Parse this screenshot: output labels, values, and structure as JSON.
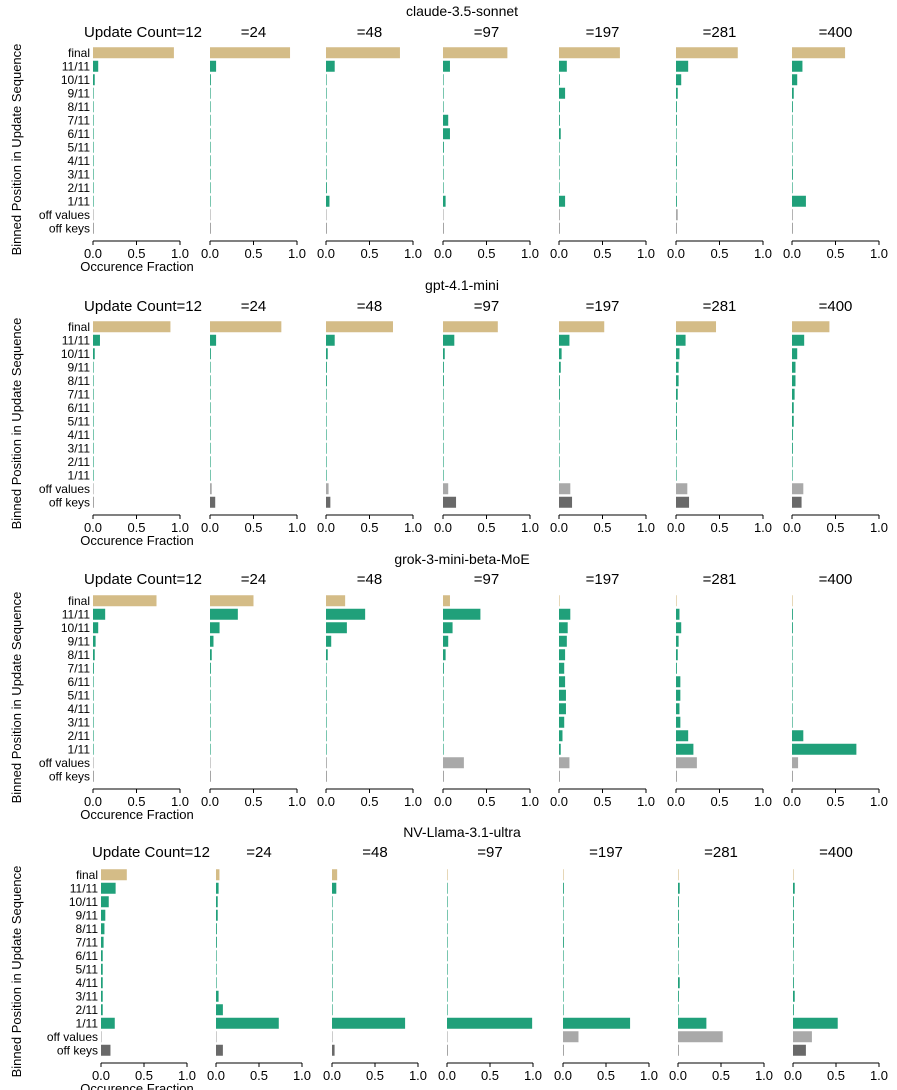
{
  "colors": {
    "final": "#d4bc87",
    "position": "#20a07a",
    "off_values": "#a9a9a9",
    "off_keys": "#696969"
  },
  "chart_data": [
    {
      "type": "bar",
      "orientation": "horizontal",
      "title": "claude-3.5-sonnet",
      "ylabel": "Binned Position in Update Sequence",
      "xlabel": "Occurence Fraction",
      "categories": [
        "final",
        "11/11",
        "10/11",
        "9/11",
        "8/11",
        "7/11",
        "6/11",
        "5/11",
        "4/11",
        "3/11",
        "2/11",
        "1/11",
        "off values",
        "off keys"
      ],
      "xlim": [
        0,
        1
      ],
      "xticks": [
        "0.0",
        "0.5",
        "1.0"
      ],
      "grid": false,
      "panels": [
        {
          "label": "Update Count=12",
          "values": [
            0.93,
            0.06,
            0.02,
            0.0,
            0.0,
            0.0,
            0.0,
            0.0,
            0.0,
            0.0,
            0.0,
            0.0,
            0.0,
            0.0
          ]
        },
        {
          "label": "=24",
          "values": [
            0.92,
            0.07,
            0.01,
            0.0,
            0.0,
            0.0,
            0.0,
            0.0,
            0.0,
            0.0,
            0.0,
            0.0,
            0.0,
            0.0
          ]
        },
        {
          "label": "=48",
          "values": [
            0.85,
            0.1,
            0.0,
            0.0,
            0.0,
            0.0,
            0.0,
            0.0,
            0.0,
            0.0,
            0.01,
            0.04,
            0.0,
            0.0
          ]
        },
        {
          "label": "=97",
          "values": [
            0.74,
            0.08,
            0.0,
            0.0,
            0.0,
            0.06,
            0.08,
            0.01,
            0.0,
            0.0,
            0.0,
            0.03,
            0.0,
            0.0
          ]
        },
        {
          "label": "=197",
          "values": [
            0.7,
            0.09,
            0.01,
            0.07,
            0.01,
            0.01,
            0.02,
            0.0,
            0.0,
            0.0,
            0.0,
            0.07,
            0.01,
            0.0
          ]
        },
        {
          "label": "=281",
          "values": [
            0.71,
            0.14,
            0.06,
            0.02,
            0.01,
            0.01,
            0.0,
            0.0,
            0.01,
            0.0,
            0.0,
            0.01,
            0.02,
            0.0
          ]
        },
        {
          "label": "=400",
          "values": [
            0.61,
            0.12,
            0.06,
            0.02,
            0.01,
            0.0,
            0.0,
            0.0,
            0.0,
            0.01,
            0.0,
            0.16,
            0.01,
            0.0
          ]
        }
      ]
    },
    {
      "type": "bar",
      "orientation": "horizontal",
      "title": "gpt-4.1-mini",
      "ylabel": "Binned Position in Update Sequence",
      "xlabel": "Occurence Fraction",
      "categories": [
        "final",
        "11/11",
        "10/11",
        "9/11",
        "8/11",
        "7/11",
        "6/11",
        "5/11",
        "4/11",
        "3/11",
        "2/11",
        "1/11",
        "off values",
        "off keys"
      ],
      "xlim": [
        0,
        1
      ],
      "xticks": [
        "0.0",
        "0.5",
        "1.0"
      ],
      "grid": false,
      "panels": [
        {
          "label": "Update Count=12",
          "values": [
            0.89,
            0.08,
            0.02,
            0.0,
            0.0,
            0.0,
            0.0,
            0.0,
            0.0,
            0.0,
            0.0,
            0.0,
            0.0,
            0.0
          ]
        },
        {
          "label": "=24",
          "values": [
            0.82,
            0.07,
            0.01,
            0.0,
            0.0,
            0.0,
            0.0,
            0.0,
            0.0,
            0.0,
            0.0,
            0.0,
            0.02,
            0.06
          ]
        },
        {
          "label": "=48",
          "values": [
            0.77,
            0.1,
            0.02,
            0.01,
            0.01,
            0.0,
            0.0,
            0.0,
            0.0,
            0.0,
            0.0,
            0.0,
            0.03,
            0.05
          ]
        },
        {
          "label": "=97",
          "values": [
            0.63,
            0.13,
            0.02,
            0.01,
            0.01,
            0.0,
            0.0,
            0.0,
            0.0,
            0.0,
            0.0,
            0.0,
            0.06,
            0.15
          ]
        },
        {
          "label": "=197",
          "values": [
            0.52,
            0.12,
            0.03,
            0.02,
            0.01,
            0.01,
            0.0,
            0.0,
            0.0,
            0.0,
            0.0,
            0.0,
            0.13,
            0.15
          ]
        },
        {
          "label": "=281",
          "values": [
            0.46,
            0.11,
            0.04,
            0.03,
            0.03,
            0.02,
            0.01,
            0.01,
            0.01,
            0.0,
            0.0,
            0.0,
            0.13,
            0.15
          ]
        },
        {
          "label": "=400",
          "values": [
            0.43,
            0.14,
            0.06,
            0.04,
            0.04,
            0.03,
            0.02,
            0.02,
            0.01,
            0.01,
            0.0,
            0.0,
            0.13,
            0.11
          ]
        }
      ]
    },
    {
      "type": "bar",
      "orientation": "horizontal",
      "title": "grok-3-mini-beta-MoE",
      "ylabel": "Binned Position in Update Sequence",
      "xlabel": "Occurence Fraction",
      "categories": [
        "final",
        "11/11",
        "10/11",
        "9/11",
        "8/11",
        "7/11",
        "6/11",
        "5/11",
        "4/11",
        "3/11",
        "2/11",
        "1/11",
        "off values",
        "off keys"
      ],
      "xlim": [
        0,
        1
      ],
      "xticks": [
        "0.0",
        "0.5",
        "1.0"
      ],
      "grid": false,
      "panels": [
        {
          "label": "Update Count=12",
          "values": [
            0.73,
            0.14,
            0.06,
            0.03,
            0.02,
            0.01,
            0.0,
            0.0,
            0.0,
            0.0,
            0.0,
            0.0,
            0.0,
            0.0
          ]
        },
        {
          "label": "=24",
          "values": [
            0.5,
            0.32,
            0.11,
            0.04,
            0.02,
            0.01,
            0.0,
            0.0,
            0.0,
            0.0,
            0.0,
            0.0,
            0.0,
            0.0
          ]
        },
        {
          "label": "=48",
          "values": [
            0.22,
            0.45,
            0.24,
            0.06,
            0.02,
            0.0,
            0.0,
            0.0,
            0.0,
            0.0,
            0.0,
            0.0,
            0.01,
            0.0
          ]
        },
        {
          "label": "=97",
          "values": [
            0.08,
            0.43,
            0.11,
            0.06,
            0.03,
            0.01,
            0.0,
            0.0,
            0.0,
            0.0,
            0.0,
            0.0,
            0.24,
            0.0
          ]
        },
        {
          "label": "=197",
          "values": [
            0.0,
            0.13,
            0.1,
            0.09,
            0.07,
            0.06,
            0.07,
            0.08,
            0.08,
            0.06,
            0.04,
            0.02,
            0.12,
            0.0
          ]
        },
        {
          "label": "=281",
          "values": [
            0.0,
            0.04,
            0.06,
            0.03,
            0.02,
            0.01,
            0.05,
            0.05,
            0.04,
            0.05,
            0.14,
            0.2,
            0.24,
            0.0
          ]
        },
        {
          "label": "=400",
          "values": [
            0.0,
            0.01,
            0.01,
            0.0,
            0.0,
            0.0,
            0.0,
            0.0,
            0.0,
            0.0,
            0.13,
            0.74,
            0.07,
            0.0
          ]
        }
      ]
    },
    {
      "type": "bar",
      "orientation": "horizontal",
      "title": "NV-Llama-3.1-ultra",
      "ylabel": "Binned Position in Update Sequence",
      "xlabel": "Occurence Fraction",
      "categories": [
        "final",
        "11/11",
        "10/11",
        "9/11",
        "8/11",
        "7/11",
        "6/11",
        "5/11",
        "4/11",
        "3/11",
        "2/11",
        "1/11",
        "off values",
        "off keys"
      ],
      "xlim": [
        0,
        1
      ],
      "xticks": [
        "0.0",
        "0.5",
        "1.0"
      ],
      "grid": false,
      "panels": [
        {
          "label": "Update Count=12",
          "values": [
            0.3,
            0.17,
            0.09,
            0.05,
            0.04,
            0.03,
            0.02,
            0.02,
            0.02,
            0.02,
            0.02,
            0.16,
            0.0,
            0.11
          ]
        },
        {
          "label": "=24",
          "values": [
            0.04,
            0.03,
            0.02,
            0.02,
            0.01,
            0.01,
            0.0,
            0.0,
            0.0,
            0.03,
            0.08,
            0.73,
            0.0,
            0.08
          ]
        },
        {
          "label": "=48",
          "values": [
            0.06,
            0.05,
            0.0,
            0.0,
            0.0,
            0.0,
            0.0,
            0.0,
            0.0,
            0.0,
            0.0,
            0.85,
            0.0,
            0.03
          ]
        },
        {
          "label": "=97",
          "values": [
            0.0,
            0.0,
            0.0,
            0.0,
            0.0,
            0.0,
            0.0,
            0.0,
            0.0,
            0.0,
            0.0,
            0.99,
            0.0,
            0.0
          ]
        },
        {
          "label": "=197",
          "values": [
            0.0,
            0.01,
            0.0,
            0.0,
            0.0,
            0.01,
            0.0,
            0.0,
            0.0,
            0.0,
            0.0,
            0.78,
            0.18,
            0.0
          ]
        },
        {
          "label": "=281",
          "values": [
            0.0,
            0.02,
            0.01,
            0.01,
            0.01,
            0.01,
            0.0,
            0.0,
            0.02,
            0.01,
            0.0,
            0.33,
            0.52,
            0.0
          ]
        },
        {
          "label": "=400",
          "values": [
            0.0,
            0.02,
            0.01,
            0.01,
            0.01,
            0.01,
            0.0,
            0.0,
            0.01,
            0.02,
            0.01,
            0.52,
            0.22,
            0.15
          ]
        }
      ]
    }
  ]
}
